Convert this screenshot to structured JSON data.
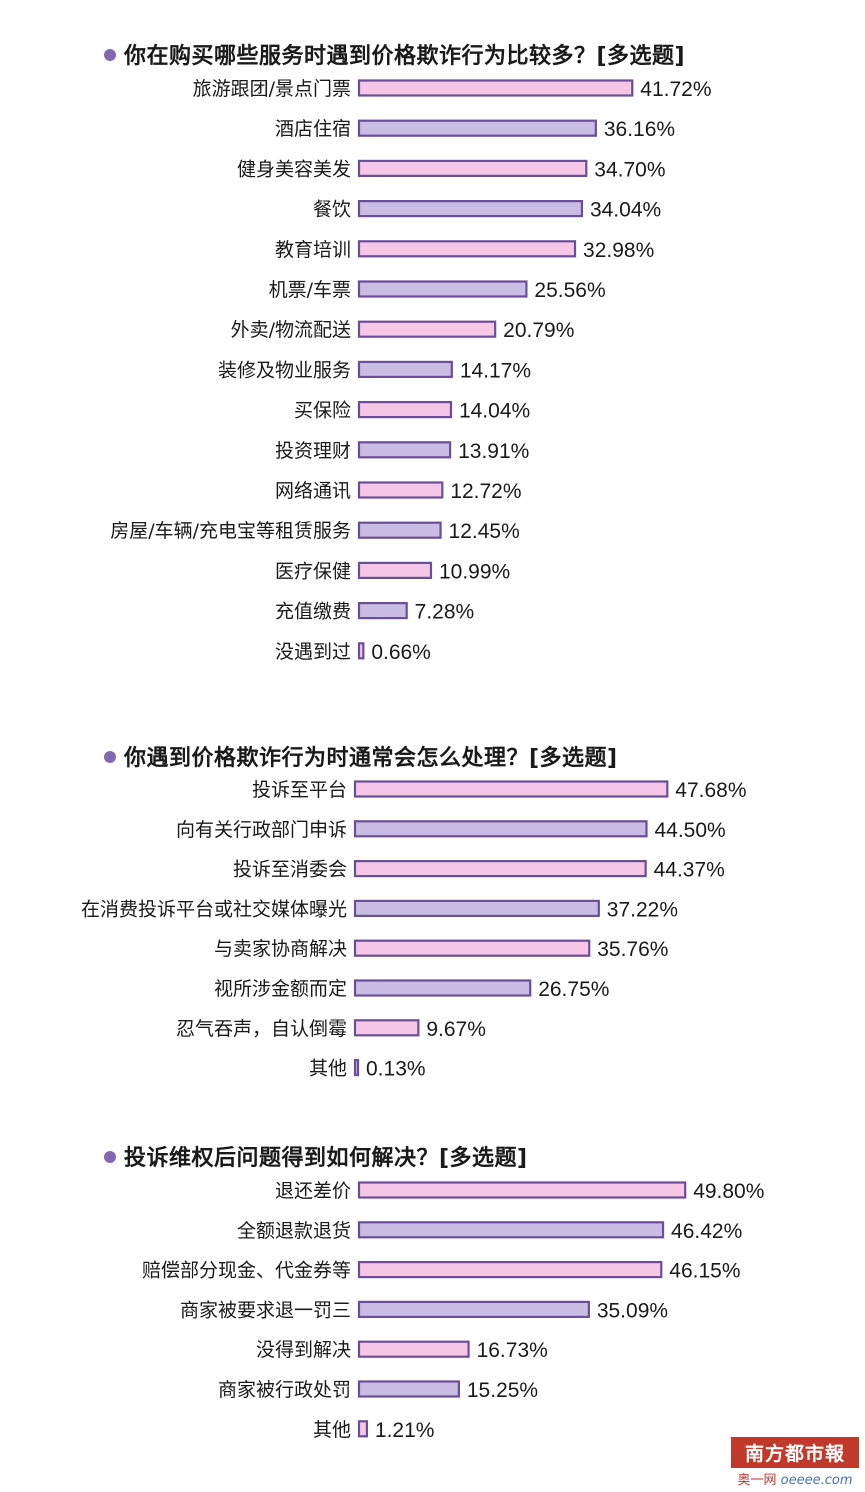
{
  "colors": {
    "pink": "#f5c6e6",
    "lavender": "#c9bde3",
    "stroke": "#6a4e98",
    "dot": "#8268b0"
  },
  "chart_data": [
    {
      "type": "bar",
      "orientation": "horizontal",
      "title": "你在购买哪些服务时遇到价格欺诈行为比较多？[多选题]",
      "categories": [
        "旅游跟团/景点门票",
        "酒店住宿",
        "健身美容美发",
        "餐饮",
        "教育培训",
        "机票/车票",
        "外卖/物流配送",
        "装修及物业服务",
        "买保险",
        "投资理财",
        "网络通讯",
        "房屋/车辆/充电宝等租赁服务",
        "医疗保健",
        "充值缴费",
        "没遇到过"
      ],
      "values": [
        41.72,
        36.16,
        34.7,
        34.04,
        32.98,
        25.56,
        20.79,
        14.17,
        14.04,
        13.91,
        12.72,
        12.45,
        10.99,
        7.28,
        0.66
      ],
      "labels": [
        "41.72%",
        "36.16%",
        "34.70%",
        "34.04%",
        "32.98%",
        "25.56%",
        "20.79%",
        "14.17%",
        "14.04%",
        "13.91%",
        "12.72%",
        "12.45%",
        "10.99%",
        "7.28%",
        "0.66%"
      ],
      "grid": false
    },
    {
      "type": "bar",
      "orientation": "horizontal",
      "title": "你遇到价格欺诈行为时通常会怎么处理？[多选题]",
      "categories": [
        "投诉至平台",
        "向有关行政部门申诉",
        "投诉至消委会",
        "在消费投诉平台或社交媒体曝光",
        "与卖家协商解决",
        "视所涉金额而定",
        "忍气吞声，自认倒霉",
        "其他"
      ],
      "values": [
        47.68,
        44.5,
        44.37,
        37.22,
        35.76,
        26.75,
        9.67,
        0.13
      ],
      "labels": [
        "47.68%",
        "44.50%",
        "44.37%",
        "37.22%",
        "35.76%",
        "26.75%",
        "9.67%",
        "0.13%"
      ],
      "grid": false
    },
    {
      "type": "bar",
      "orientation": "horizontal",
      "title": "投诉维权后问题得到如何解决？[多选题]",
      "categories": [
        "退还差价",
        "全额退款退货",
        "赔偿部分现金、代金券等",
        "商家被要求退一罚三",
        "没得到解决",
        "商家被行政处罚",
        "其他"
      ],
      "values": [
        49.8,
        46.42,
        46.15,
        35.09,
        16.73,
        15.25,
        1.21
      ],
      "labels": [
        "49.80%",
        "46.42%",
        "46.15%",
        "35.09%",
        "16.73%",
        "15.25%",
        "1.21%"
      ],
      "grid": false
    }
  ],
  "watermark": {
    "brand": "南方都市報",
    "site_cn": "奥一网",
    "site_en": "oeeee",
    "site_suffix": ".com"
  }
}
